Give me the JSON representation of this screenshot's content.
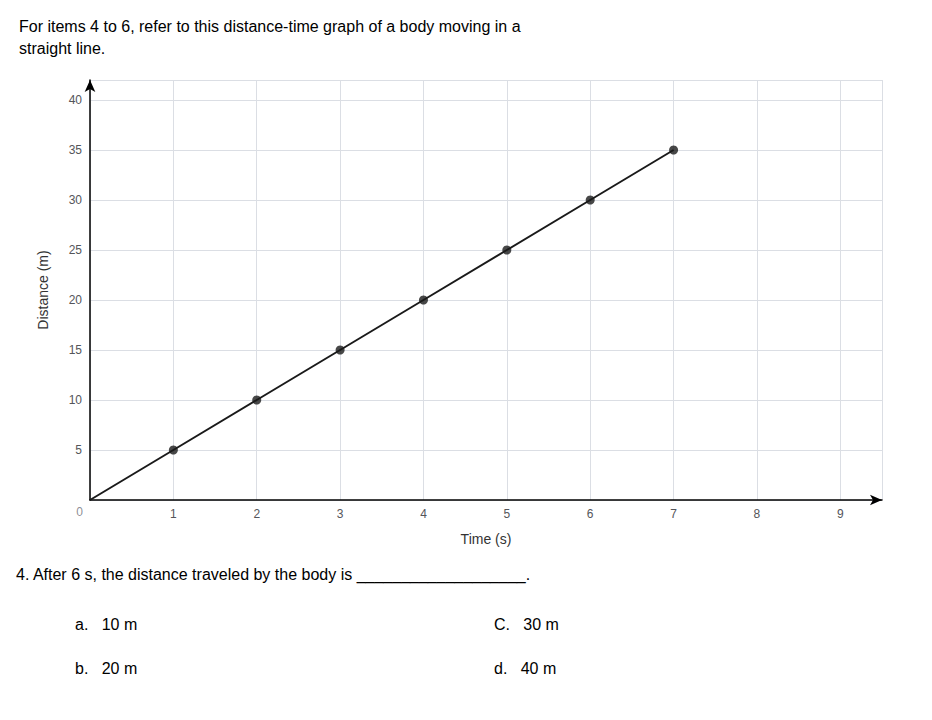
{
  "chart_data": {
    "type": "line",
    "title": "For items 4 to 6, refer to this distance-time graph of a body moving in a\nstraight line.",
    "xlabel": "Time (s)",
    "ylabel": "Distance (m)",
    "series": [
      {
        "type": "line",
        "color": "#1a1a1a",
        "x": [
          0,
          1,
          2,
          3,
          4,
          5,
          6,
          7
        ],
        "values": [
          0,
          5,
          10,
          15,
          20,
          25,
          30,
          35
        ]
      },
      {
        "type": "scatter",
        "color": "#1a1a1a",
        "x": [
          1,
          2,
          3,
          4,
          5,
          6,
          7
        ],
        "values": [
          5,
          10,
          15,
          20,
          25,
          30,
          35
        ]
      }
    ],
    "xlim": [
      0,
      9.5
    ],
    "ylim": [
      0,
      42
    ],
    "xticks": [
      1,
      2,
      3,
      4,
      5,
      6,
      7,
      8,
      9
    ],
    "yticks": [
      5,
      10,
      15,
      20,
      25,
      30,
      35,
      40
    ],
    "grid": true,
    "annotations": [
      {
        "text": "0",
        "x": 0,
        "y": 0
      }
    ],
    "footer": [
      [
        "4.",
        "After 6 s, the distance traveled by the body is",
        "___________________."
      ],
      [
        "a.   10 m",
        "C.   30 m"
      ],
      [
        "b.   20 m",
        "d.   40 m"
      ]
    ]
  }
}
